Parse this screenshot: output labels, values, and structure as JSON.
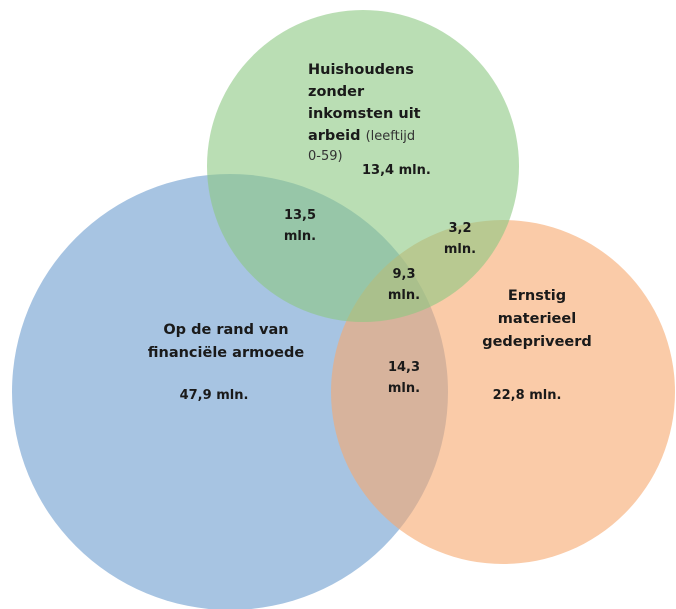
{
  "sets": [
    {
      "label_lines": [
        "Huishoudens",
        "zonder",
        "inkomsten uit",
        "arbeid"
      ],
      "note_lines": [
        "(leeftijd",
        "0-59)"
      ],
      "value": "13,4 mln."
    },
    {
      "label_lines": [
        "Op de rand van",
        "financiële armoede"
      ],
      "value": "47,9 mln."
    },
    {
      "label_lines": [
        "Ernstig",
        "materieel",
        "gedepriveerd"
      ],
      "value": "22,8 mln."
    }
  ],
  "intersections": [
    {
      "lines": [
        "13,5",
        "mln."
      ]
    },
    {
      "lines": [
        "3,2",
        "mln."
      ]
    },
    {
      "lines": [
        "9,3",
        "mln."
      ]
    },
    {
      "lines": [
        "14,3",
        "mln."
      ]
    }
  ]
}
